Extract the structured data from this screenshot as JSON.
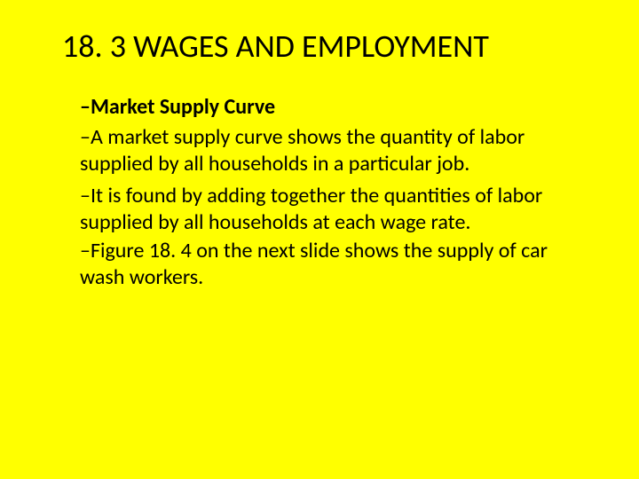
{
  "colors": {
    "background": "#ffff00",
    "text": "#000000"
  },
  "typography": {
    "title_fontsize": 36,
    "body_fontsize": 24,
    "font_family": "Calibri, Arial, sans-serif"
  },
  "title": "18. 3 WAGES AND EMPLOYMENT",
  "bullets": [
    {
      "dash": "–",
      "text": "Market Supply Curve",
      "bold": true
    },
    {
      "dash": "–",
      "text": "A market supply curve shows the quantity of labor supplied by all households in a particular job.",
      "bold": false
    },
    {
      "dash": "–",
      "text": "It is found by adding together the quantities of labor supplied by all households at each wage rate.",
      "bold": false
    },
    {
      "dash": "–",
      "text": "Figure 18. 4 on the next slide shows the supply of car wash workers.",
      "bold": false
    }
  ]
}
